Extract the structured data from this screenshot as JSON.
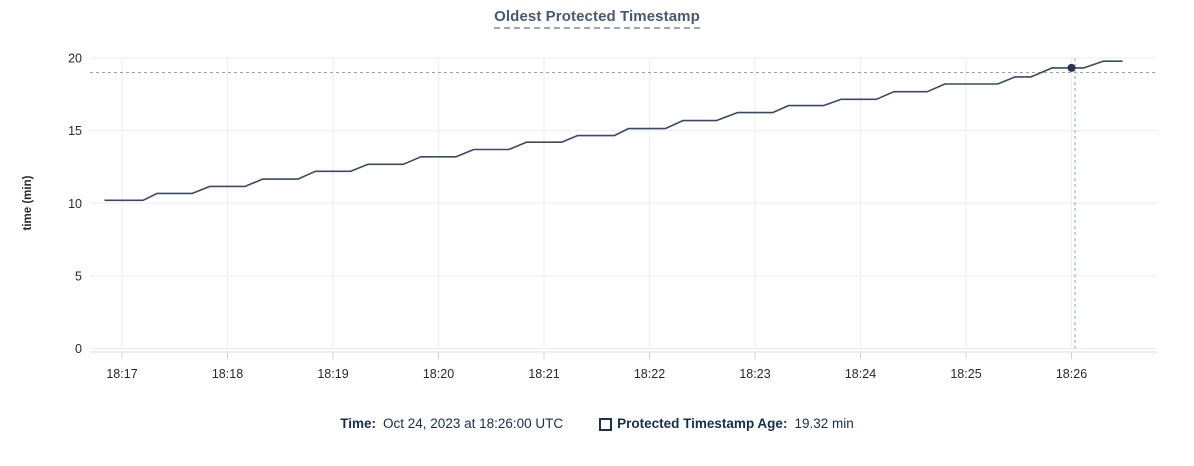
{
  "title": {
    "text": "Oldest Protected Timestamp"
  },
  "colors": {
    "title": "#475872",
    "title_underline": "#9aa9bf",
    "line": "#3b4a63",
    "grid": "#ededed",
    "axis_line": "#d9dcdf",
    "tick": "#cfd3d7",
    "tick_label": "#26292e",
    "crosshair": "#93a3b1",
    "hover_dot": "#263650",
    "legend_text": "#152e52"
  },
  "chart_data": {
    "type": "line",
    "title": "Oldest Protected Timestamp",
    "xlabel": "",
    "ylabel": "time (min)",
    "ylim": [
      0,
      20
    ],
    "y_ticks": [
      0,
      5,
      10,
      15,
      20
    ],
    "x_ticks": [
      "18:17",
      "18:18",
      "18:19",
      "18:20",
      "18:21",
      "18:22",
      "18:23",
      "18:24",
      "18:25",
      "18:26"
    ],
    "x_tick_interval_seconds": 60,
    "grid": true,
    "legend_position": "bottom",
    "series": [
      {
        "name": "Protected Timestamp Age",
        "units": "min",
        "points_t_seconds_from_1817": [
          [
            -10,
            10.2
          ],
          [
            12,
            10.2
          ],
          [
            20,
            10.68
          ],
          [
            40,
            10.68
          ],
          [
            50,
            11.16
          ],
          [
            70,
            11.16
          ],
          [
            80,
            11.66
          ],
          [
            100,
            11.66
          ],
          [
            110,
            12.2
          ],
          [
            130,
            12.2
          ],
          [
            140,
            12.68
          ],
          [
            160,
            12.68
          ],
          [
            170,
            13.2
          ],
          [
            190,
            13.2
          ],
          [
            200,
            13.7
          ],
          [
            220,
            13.7
          ],
          [
            230,
            14.2
          ],
          [
            250,
            14.2
          ],
          [
            259,
            14.66
          ],
          [
            280,
            14.66
          ],
          [
            288,
            15.14
          ],
          [
            309,
            15.14
          ],
          [
            319,
            15.69
          ],
          [
            338,
            15.69
          ],
          [
            350,
            16.24
          ],
          [
            370,
            16.24
          ],
          [
            379,
            16.72
          ],
          [
            399,
            16.72
          ],
          [
            409,
            17.16
          ],
          [
            429,
            17.16
          ],
          [
            439,
            17.68
          ],
          [
            458,
            17.68
          ],
          [
            468,
            18.21
          ],
          [
            498,
            18.21
          ],
          [
            508,
            18.7
          ],
          [
            517,
            18.7
          ],
          [
            529,
            19.32
          ],
          [
            547,
            19.32
          ],
          [
            558,
            19.78
          ],
          [
            569,
            19.78
          ]
        ]
      }
    ],
    "hover": {
      "point_t_seconds": 540,
      "point_value": 19.32,
      "crosshair_t_seconds": 542,
      "crosshair_value": 19.0,
      "time_text": "Oct 24, 2023 at 18:26:00 UTC",
      "value_text": "19.32 min"
    }
  },
  "legend": {
    "time_label": "Time:",
    "time_value": "Oct 24, 2023 at 18:26:00 UTC",
    "series_label": "Protected Timestamp Age:",
    "series_value": "19.32 min"
  }
}
